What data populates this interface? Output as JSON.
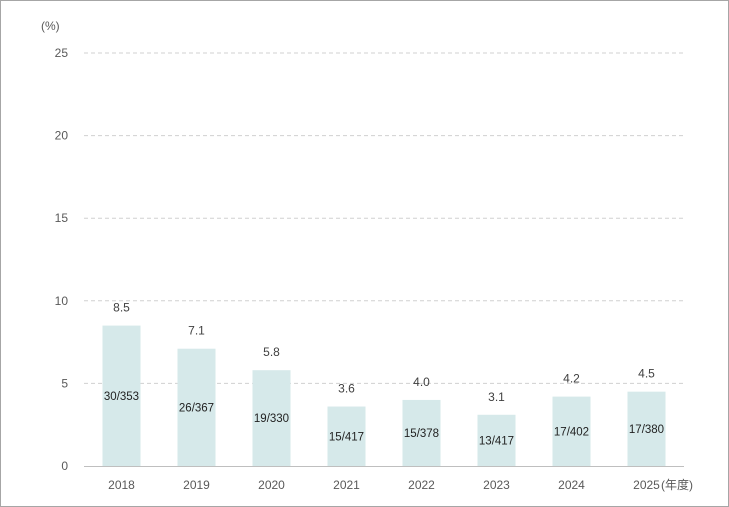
{
  "chart_data": {
    "type": "bar",
    "y_unit_label": "(%)",
    "x_unit_label": "(年度)",
    "categories": [
      "2018",
      "2019",
      "2020",
      "2021",
      "2022",
      "2023",
      "2024",
      "2025"
    ],
    "values": [
      8.5,
      7.1,
      5.8,
      3.6,
      4.0,
      3.1,
      4.2,
      4.5
    ],
    "value_labels": [
      "8.5",
      "7.1",
      "5.8",
      "3.6",
      "4.0",
      "3.1",
      "4.2",
      "4.5"
    ],
    "inner_labels": [
      "30/353",
      "26/367",
      "19/330",
      "15/417",
      "15/378",
      "13/417",
      "17/402",
      "17/380"
    ],
    "ylim": [
      0,
      25
    ],
    "y_ticks": [
      "0",
      "5",
      "10",
      "15",
      "20",
      "25"
    ],
    "grid": true,
    "bar_color": "#d6e9ea",
    "grid_color": "#d0d0d0"
  }
}
